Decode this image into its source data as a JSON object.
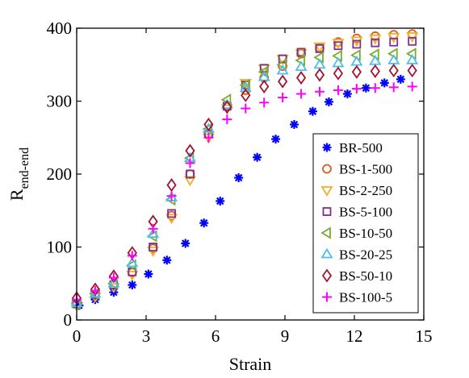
{
  "chart_data": {
    "type": "scatter",
    "xlabel": "Strain",
    "ylabel_main": "R",
    "ylabel_sub": "end-end",
    "xlim": [
      0,
      15
    ],
    "ylim": [
      0,
      400
    ],
    "xticks": [
      0,
      3,
      6,
      9,
      12,
      15
    ],
    "yticks": [
      0,
      100,
      200,
      300,
      400
    ],
    "grid": false,
    "legend_position": "lower-right",
    "series": [
      {
        "name": "BR-500",
        "marker": "asterisk",
        "color": "#0000ff",
        "x": [
          0.1,
          0.8,
          1.6,
          2.4,
          3.1,
          3.9,
          4.7,
          5.5,
          6.2,
          7.0,
          7.8,
          8.6,
          9.4,
          10.2,
          10.9,
          11.7,
          12.5,
          13.3,
          14.0
        ],
        "y": [
          20,
          28,
          38,
          48,
          63,
          82,
          105,
          133,
          163,
          195,
          223,
          248,
          268,
          286,
          299,
          310,
          318,
          325,
          330
        ]
      },
      {
        "name": "BS-1-500",
        "marker": "circle",
        "color": "#e4561c",
        "x": [
          0.0,
          0.8,
          1.6,
          2.4,
          3.3,
          4.1,
          4.9,
          5.7,
          6.5,
          7.3,
          8.1,
          8.9,
          9.7,
          10.5,
          11.3,
          12.1,
          12.9,
          13.7,
          14.5
        ],
        "y": [
          22,
          35,
          48,
          65,
          98,
          143,
          200,
          255,
          293,
          315,
          332,
          348,
          365,
          373,
          381,
          386,
          389,
          391,
          392
        ]
      },
      {
        "name": "BS-2-250",
        "marker": "triangle-down",
        "color": "#eeb120",
        "x": [
          0.0,
          0.8,
          1.6,
          2.4,
          3.3,
          4.1,
          4.9,
          5.7,
          6.5,
          7.3,
          8.1,
          8.9,
          9.7,
          10.5,
          11.3,
          12.1,
          12.9,
          13.7,
          14.5
        ],
        "y": [
          20,
          32,
          45,
          62,
          95,
          140,
          192,
          250,
          290,
          325,
          345,
          358,
          366,
          375,
          380,
          383,
          386,
          388,
          389
        ]
      },
      {
        "name": "BS-5-100",
        "marker": "square",
        "color": "#7d2e8e",
        "x": [
          0.0,
          0.8,
          1.6,
          2.4,
          3.3,
          4.1,
          4.9,
          5.7,
          6.5,
          7.3,
          8.1,
          8.9,
          9.7,
          10.5,
          11.3,
          12.1,
          12.9,
          13.7,
          14.5
        ],
        "y": [
          22,
          35,
          48,
          66,
          100,
          146,
          200,
          255,
          293,
          322,
          345,
          358,
          367,
          372,
          376,
          378,
          380,
          381,
          382
        ]
      },
      {
        "name": "BS-10-50",
        "marker": "triangle-left",
        "color": "#77ac30",
        "x": [
          0.0,
          0.8,
          1.6,
          2.4,
          3.3,
          4.1,
          4.9,
          5.7,
          6.5,
          7.3,
          8.1,
          8.9,
          9.7,
          10.5,
          11.3,
          12.1,
          12.9,
          13.7,
          14.5
        ],
        "y": [
          22,
          36,
          50,
          75,
          115,
          165,
          222,
          262,
          302,
          322,
          340,
          350,
          356,
          360,
          362,
          363,
          364,
          365,
          365
        ]
      },
      {
        "name": "BS-20-25",
        "marker": "triangle-up",
        "color": "#4dbeee",
        "x": [
          0.0,
          0.8,
          1.6,
          2.4,
          3.3,
          4.1,
          4.9,
          5.7,
          6.5,
          7.3,
          8.1,
          8.9,
          9.7,
          10.5,
          11.3,
          12.1,
          12.9,
          13.7,
          14.5
        ],
        "y": [
          23,
          36,
          50,
          78,
          118,
          168,
          222,
          262,
          295,
          318,
          333,
          342,
          347,
          350,
          352,
          354,
          355,
          356,
          356
        ]
      },
      {
        "name": "BS-50-10",
        "marker": "diamond",
        "color": "#a2142f",
        "x": [
          0.0,
          0.8,
          1.6,
          2.4,
          3.3,
          4.1,
          4.9,
          5.7,
          6.5,
          7.3,
          8.1,
          8.9,
          9.7,
          10.5,
          11.3,
          12.1,
          12.9,
          13.7,
          14.5
        ],
        "y": [
          30,
          42,
          60,
          92,
          135,
          185,
          232,
          268,
          292,
          308,
          320,
          327,
          332,
          336,
          338,
          340,
          341,
          342,
          342
        ]
      },
      {
        "name": "BS-100-5",
        "marker": "plus",
        "color": "#ff00ff",
        "x": [
          0.0,
          0.8,
          1.6,
          2.4,
          3.3,
          4.1,
          4.9,
          5.7,
          6.5,
          7.3,
          8.1,
          8.9,
          9.7,
          10.5,
          11.3,
          12.1,
          12.9,
          13.7,
          14.5
        ],
        "y": [
          28,
          40,
          58,
          88,
          125,
          170,
          215,
          250,
          275,
          290,
          298,
          305,
          310,
          313,
          315,
          317,
          318,
          319,
          320
        ]
      }
    ]
  }
}
